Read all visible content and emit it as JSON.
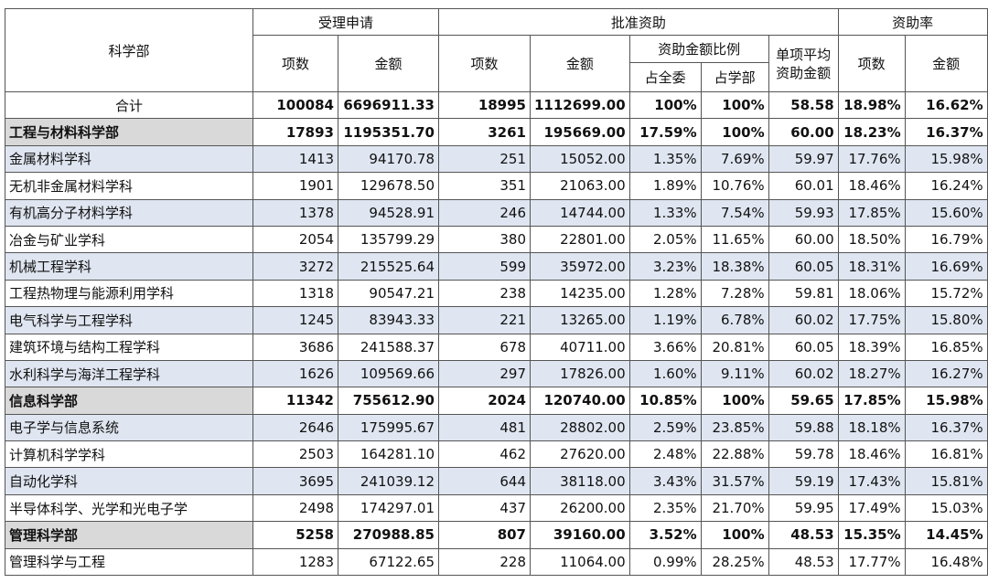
{
  "headers": {
    "department": "科学部",
    "accepted": "受理申请",
    "approved": "批准资助",
    "rate": "资助率",
    "count": "项数",
    "amount": "金额",
    "ratio": "资助金额比例",
    "avg": "单项平均资助金额",
    "share_all": "占全委",
    "share_dept": "占学部"
  },
  "rows": [
    {
      "type": "total",
      "name": "合计",
      "acc_n": "100084",
      "acc_amt": "6696911.33",
      "app_n": "18995",
      "app_amt": "1112699.00",
      "share_all": "100%",
      "share_dept": "100%",
      "avg": "58.58",
      "rate_n": "18.98%",
      "rate_amt": "16.62%"
    },
    {
      "type": "dept",
      "name": "工程与材料科学部",
      "acc_n": "17893",
      "acc_amt": "1195351.70",
      "app_n": "3261",
      "app_amt": "195669.00",
      "share_all": "17.59%",
      "share_dept": "100%",
      "avg": "60.00",
      "rate_n": "18.23%",
      "rate_amt": "16.37%"
    },
    {
      "type": "shade",
      "name": "金属材料学科",
      "acc_n": "1413",
      "acc_amt": "94170.78",
      "app_n": "251",
      "app_amt": "15052.00",
      "share_all": "1.35%",
      "share_dept": "7.69%",
      "avg": "59.97",
      "rate_n": "17.76%",
      "rate_amt": "15.98%"
    },
    {
      "type": "plain",
      "name": "无机非金属材料学科",
      "acc_n": "1901",
      "acc_amt": "129678.50",
      "app_n": "351",
      "app_amt": "21063.00",
      "share_all": "1.89%",
      "share_dept": "10.76%",
      "avg": "60.01",
      "rate_n": "18.46%",
      "rate_amt": "16.24%"
    },
    {
      "type": "shade",
      "name": "有机高分子材料学科",
      "acc_n": "1378",
      "acc_amt": "94528.91",
      "app_n": "246",
      "app_amt": "14744.00",
      "share_all": "1.33%",
      "share_dept": "7.54%",
      "avg": "59.93",
      "rate_n": "17.85%",
      "rate_amt": "15.60%"
    },
    {
      "type": "plain",
      "name": "冶金与矿业学科",
      "acc_n": "2054",
      "acc_amt": "135799.29",
      "app_n": "380",
      "app_amt": "22801.00",
      "share_all": "2.05%",
      "share_dept": "11.65%",
      "avg": "60.00",
      "rate_n": "18.50%",
      "rate_amt": "16.79%"
    },
    {
      "type": "shade",
      "name": "机械工程学科",
      "acc_n": "3272",
      "acc_amt": "215525.64",
      "app_n": "599",
      "app_amt": "35972.00",
      "share_all": "3.23%",
      "share_dept": "18.38%",
      "avg": "60.05",
      "rate_n": "18.31%",
      "rate_amt": "16.69%"
    },
    {
      "type": "plain",
      "name": "工程热物理与能源利用学科",
      "acc_n": "1318",
      "acc_amt": "90547.21",
      "app_n": "238",
      "app_amt": "14235.00",
      "share_all": "1.28%",
      "share_dept": "7.28%",
      "avg": "59.81",
      "rate_n": "18.06%",
      "rate_amt": "15.72%"
    },
    {
      "type": "shade",
      "name": "电气科学与工程学科",
      "acc_n": "1245",
      "acc_amt": "83943.33",
      "app_n": "221",
      "app_amt": "13265.00",
      "share_all": "1.19%",
      "share_dept": "6.78%",
      "avg": "60.02",
      "rate_n": "17.75%",
      "rate_amt": "15.80%"
    },
    {
      "type": "plain",
      "name": "建筑环境与结构工程学科",
      "acc_n": "3686",
      "acc_amt": "241588.37",
      "app_n": "678",
      "app_amt": "40711.00",
      "share_all": "3.66%",
      "share_dept": "20.81%",
      "avg": "60.05",
      "rate_n": "18.39%",
      "rate_amt": "16.85%"
    },
    {
      "type": "shade",
      "name": "水利科学与海洋工程学科",
      "acc_n": "1626",
      "acc_amt": "109569.66",
      "app_n": "297",
      "app_amt": "17826.00",
      "share_all": "1.60%",
      "share_dept": "9.11%",
      "avg": "60.02",
      "rate_n": "18.27%",
      "rate_amt": "16.27%"
    },
    {
      "type": "dept",
      "name": "信息科学部",
      "acc_n": "11342",
      "acc_amt": "755612.90",
      "app_n": "2024",
      "app_amt": "120740.00",
      "share_all": "10.85%",
      "share_dept": "100%",
      "avg": "59.65",
      "rate_n": "17.85%",
      "rate_amt": "15.98%"
    },
    {
      "type": "shade",
      "name": "电子学与信息系统",
      "acc_n": "2646",
      "acc_amt": "175995.67",
      "app_n": "481",
      "app_amt": "28802.00",
      "share_all": "2.59%",
      "share_dept": "23.85%",
      "avg": "59.88",
      "rate_n": "18.18%",
      "rate_amt": "16.37%"
    },
    {
      "type": "plain",
      "name": "计算机科学学科",
      "acc_n": "2503",
      "acc_amt": "164281.10",
      "app_n": "462",
      "app_amt": "27620.00",
      "share_all": "2.48%",
      "share_dept": "22.88%",
      "avg": "59.78",
      "rate_n": "18.46%",
      "rate_amt": "16.81%"
    },
    {
      "type": "shade",
      "name": "自动化学科",
      "acc_n": "3695",
      "acc_amt": "241039.12",
      "app_n": "644",
      "app_amt": "38118.00",
      "share_all": "3.43%",
      "share_dept": "31.57%",
      "avg": "59.19",
      "rate_n": "17.43%",
      "rate_amt": "15.81%"
    },
    {
      "type": "plain",
      "name": "半导体科学、光学和光电子学",
      "acc_n": "2498",
      "acc_amt": "174297.01",
      "app_n": "437",
      "app_amt": "26200.00",
      "share_all": "2.35%",
      "share_dept": "21.70%",
      "avg": "59.95",
      "rate_n": "17.49%",
      "rate_amt": "15.03%"
    },
    {
      "type": "dept",
      "name": "管理科学部",
      "acc_n": "5258",
      "acc_amt": "270988.85",
      "app_n": "807",
      "app_amt": "39160.00",
      "share_all": "3.52%",
      "share_dept": "100%",
      "avg": "48.53",
      "rate_n": "15.35%",
      "rate_amt": "14.45%"
    },
    {
      "type": "plain",
      "name": "管理科学与工程",
      "acc_n": "1283",
      "acc_amt": "67122.65",
      "app_n": "228",
      "app_amt": "11064.00",
      "share_all": "0.99%",
      "share_dept": "28.25%",
      "avg": "48.53",
      "rate_n": "17.77%",
      "rate_amt": "16.48%"
    }
  ]
}
